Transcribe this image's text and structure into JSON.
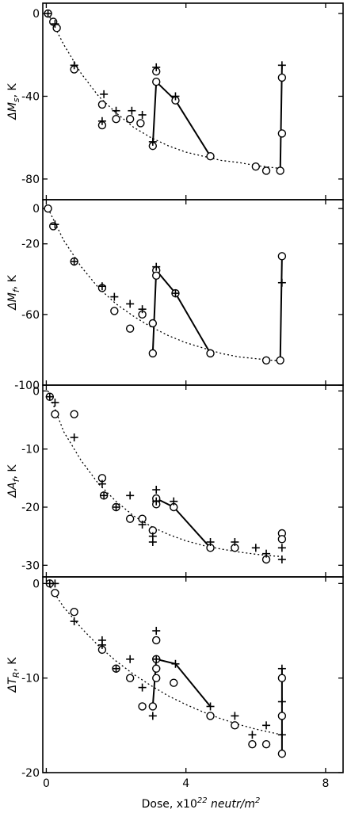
{
  "chart_data": [
    {
      "type": "scatter",
      "ylabel": "ΔM_s , K",
      "ylabel_main": "ΔM",
      "ylabel_sub": "s",
      "ylabel_unit": ", K",
      "ylim": [
        -90,
        5
      ],
      "yticks": [
        0,
        -40,
        -80
      ],
      "ytick_labels": [
        "0",
        "-40",
        "-80"
      ],
      "xlim": [
        -0.1,
        8.5
      ],
      "series": [
        {
          "marker": "circle",
          "points": [
            [
              0.05,
              0
            ],
            [
              0.2,
              -4
            ],
            [
              0.3,
              -7
            ],
            [
              0.8,
              -27
            ],
            [
              1.6,
              -44
            ],
            [
              1.6,
              -54
            ],
            [
              2.0,
              -51
            ],
            [
              2.4,
              -51
            ],
            [
              2.7,
              -53
            ],
            [
              3.05,
              -64
            ],
            [
              3.15,
              -28
            ],
            [
              3.15,
              -33
            ],
            [
              3.7,
              -42
            ],
            [
              4.7,
              -69
            ],
            [
              6.0,
              -74
            ],
            [
              6.3,
              -76
            ],
            [
              6.7,
              -76
            ],
            [
              6.75,
              -58
            ],
            [
              6.75,
              -31
            ]
          ]
        },
        {
          "marker": "cross",
          "points": [
            [
              0.05,
              0
            ],
            [
              0.25,
              -5
            ],
            [
              0.8,
              -25
            ],
            [
              1.65,
              -39
            ],
            [
              1.6,
              -52
            ],
            [
              2.0,
              -47
            ],
            [
              2.45,
              -47
            ],
            [
              2.75,
              -49
            ],
            [
              3.05,
              -62
            ],
            [
              3.15,
              -26
            ],
            [
              3.7,
              -40
            ],
            [
              6.75,
              -25
            ]
          ]
        }
      ],
      "solid_lines": [
        [
          [
            3.05,
            -64
          ],
          [
            3.15,
            -33
          ],
          [
            3.7,
            -42
          ],
          [
            4.7,
            -69
          ]
        ],
        [
          [
            6.7,
            -76
          ],
          [
            6.75,
            -25
          ]
        ]
      ],
      "fit_curve": {
        "style": "dotted",
        "points": [
          [
            0.05,
            0
          ],
          [
            0.5,
            -15
          ],
          [
            1.0,
            -29
          ],
          [
            1.5,
            -40
          ],
          [
            2.0,
            -48
          ],
          [
            2.5,
            -55
          ],
          [
            3.0,
            -60
          ],
          [
            3.5,
            -64
          ],
          [
            4.0,
            -67
          ],
          [
            4.5,
            -69
          ],
          [
            5.0,
            -71
          ],
          [
            5.5,
            -72
          ],
          [
            6.0,
            -73.5
          ],
          [
            6.5,
            -74.5
          ],
          [
            6.75,
            -75
          ]
        ]
      }
    },
    {
      "type": "scatter",
      "ylabel": "ΔM_f , K",
      "ylabel_main": "ΔM",
      "ylabel_sub": "f",
      "ylabel_unit": ", K",
      "ylim": [
        -100,
        5
      ],
      "yticks": [
        0,
        -20,
        -60,
        -100
      ],
      "ytick_labels": [
        "0",
        "-20",
        "-60",
        "-100"
      ],
      "xlim": [
        -0.1,
        8.5
      ],
      "series": [
        {
          "marker": "circle",
          "points": [
            [
              0.05,
              0
            ],
            [
              0.2,
              -10
            ],
            [
              0.8,
              -30
            ],
            [
              1.6,
              -45
            ],
            [
              1.95,
              -58
            ],
            [
              2.4,
              -68
            ],
            [
              2.75,
              -60
            ],
            [
              3.05,
              -65
            ],
            [
              3.05,
              -82
            ],
            [
              3.15,
              -35
            ],
            [
              3.15,
              -38
            ],
            [
              3.7,
              -48
            ],
            [
              4.7,
              -82
            ],
            [
              6.3,
              -86
            ],
            [
              6.7,
              -86
            ],
            [
              6.75,
              -27
            ]
          ]
        },
        {
          "marker": "cross",
          "points": [
            [
              0.25,
              -9
            ],
            [
              0.8,
              -30
            ],
            [
              1.6,
              -44
            ],
            [
              1.95,
              -50
            ],
            [
              2.4,
              -54
            ],
            [
              2.75,
              -57
            ],
            [
              3.15,
              -33
            ],
            [
              3.7,
              -48
            ],
            [
              6.75,
              -42
            ]
          ]
        }
      ],
      "solid_lines": [
        [
          [
            3.05,
            -82
          ],
          [
            3.15,
            -35
          ],
          [
            3.7,
            -48
          ],
          [
            4.7,
            -82
          ]
        ],
        [
          [
            6.7,
            -86
          ],
          [
            6.75,
            -27
          ]
        ]
      ],
      "fit_curve": {
        "style": "dotted",
        "points": [
          [
            0.05,
            0
          ],
          [
            0.5,
            -18
          ],
          [
            1.0,
            -33
          ],
          [
            1.5,
            -45
          ],
          [
            2.0,
            -54
          ],
          [
            2.5,
            -61
          ],
          [
            3.0,
            -67
          ],
          [
            3.5,
            -72
          ],
          [
            4.0,
            -76
          ],
          [
            4.5,
            -79
          ],
          [
            5.0,
            -82
          ],
          [
            5.5,
            -84
          ],
          [
            6.0,
            -85
          ],
          [
            6.5,
            -86
          ],
          [
            6.75,
            -86
          ]
        ]
      }
    },
    {
      "type": "scatter",
      "ylabel": "ΔA_f , K",
      "ylabel_main": "ΔA",
      "ylabel_sub": "f",
      "ylabel_unit": ", K",
      "ylim": [
        -32,
        1
      ],
      "yticks": [
        0,
        -10,
        -20,
        -30
      ],
      "ytick_labels": [
        "0",
        "-10",
        "-20",
        "-30"
      ],
      "xlim": [
        -0.1,
        8.5
      ],
      "series": [
        {
          "marker": "circle",
          "points": [
            [
              0.1,
              -1
            ],
            [
              0.25,
              -4
            ],
            [
              0.8,
              -4
            ],
            [
              1.6,
              -15
            ],
            [
              1.65,
              -18
            ],
            [
              2.0,
              -20
            ],
            [
              2.4,
              -22
            ],
            [
              2.75,
              -22
            ],
            [
              3.05,
              -24
            ],
            [
              3.15,
              -18.5
            ],
            [
              3.15,
              -19.5
            ],
            [
              3.65,
              -20
            ],
            [
              4.7,
              -27
            ],
            [
              5.4,
              -27
            ],
            [
              6.3,
              -29
            ],
            [
              6.75,
              -24.5
            ],
            [
              6.75,
              -25.5
            ]
          ]
        },
        {
          "marker": "cross",
          "points": [
            [
              0.1,
              -1
            ],
            [
              0.25,
              -2
            ],
            [
              0.8,
              -8
            ],
            [
              1.6,
              -16
            ],
            [
              1.65,
              -18
            ],
            [
              2.0,
              -20
            ],
            [
              2.4,
              -18
            ],
            [
              2.75,
              -23
            ],
            [
              3.05,
              -25
            ],
            [
              3.05,
              -26
            ],
            [
              3.15,
              -17
            ],
            [
              3.15,
              -19
            ],
            [
              3.65,
              -19
            ],
            [
              4.7,
              -26
            ],
            [
              5.4,
              -26
            ],
            [
              6.0,
              -27
            ],
            [
              6.3,
              -28
            ],
            [
              6.75,
              -27
            ],
            [
              6.75,
              -29
            ]
          ]
        }
      ],
      "solid_lines": [
        [
          [
            3.05,
            -19
          ],
          [
            3.15,
            -18.5
          ],
          [
            3.65,
            -20
          ],
          [
            4.7,
            -27
          ]
        ]
      ],
      "fit_curve": {
        "style": "dotted",
        "points": [
          [
            0.05,
            0
          ],
          [
            0.5,
            -7
          ],
          [
            1.0,
            -12
          ],
          [
            1.5,
            -16
          ],
          [
            2.0,
            -19
          ],
          [
            2.5,
            -21.5
          ],
          [
            3.0,
            -23.3
          ],
          [
            3.5,
            -24.7
          ],
          [
            4.0,
            -25.8
          ],
          [
            4.5,
            -26.6
          ],
          [
            5.0,
            -27.2
          ],
          [
            5.5,
            -27.7
          ],
          [
            6.0,
            -28.1
          ],
          [
            6.5,
            -28.4
          ],
          [
            6.75,
            -28.5
          ]
        ]
      }
    },
    {
      "type": "scatter",
      "ylabel": "ΔT_R , K",
      "ylabel_main": "ΔT",
      "ylabel_sub": "R",
      "ylabel_unit": ", K",
      "xlabel": "Dose, x10^22 neutr/m^2",
      "xlabel_main": "Dose, x10",
      "xlabel_exp": "22",
      "xlabel_unit": " neutr/m",
      "xlabel_unit_exp": "2",
      "ylim": [
        -20,
        0.7
      ],
      "yticks": [
        0,
        -10,
        -20
      ],
      "ytick_labels": [
        "0",
        "-10",
        "-20"
      ],
      "xlim": [
        -0.1,
        8.5
      ],
      "xticks": [
        0,
        4,
        8
      ],
      "xtick_labels": [
        "0",
        "4",
        "8"
      ],
      "series": [
        {
          "marker": "circle",
          "points": [
            [
              0.1,
              0
            ],
            [
              0.25,
              -1
            ],
            [
              0.8,
              -3
            ],
            [
              1.6,
              -7
            ],
            [
              2.0,
              -9
            ],
            [
              2.4,
              -10
            ],
            [
              2.75,
              -13
            ],
            [
              3.05,
              -13
            ],
            [
              3.15,
              -6
            ],
            [
              3.15,
              -8
            ],
            [
              3.15,
              -9
            ],
            [
              3.15,
              -10
            ],
            [
              3.65,
              -10.5
            ],
            [
              4.7,
              -14
            ],
            [
              5.4,
              -15
            ],
            [
              5.9,
              -17
            ],
            [
              6.3,
              -17
            ],
            [
              6.75,
              -10
            ],
            [
              6.75,
              -14
            ],
            [
              6.75,
              -18
            ]
          ]
        },
        {
          "marker": "cross",
          "points": [
            [
              0.1,
              0
            ],
            [
              0.25,
              0
            ],
            [
              0.8,
              -4
            ],
            [
              1.6,
              -6
            ],
            [
              1.6,
              -6.5
            ],
            [
              2.0,
              -9
            ],
            [
              2.4,
              -8
            ],
            [
              2.75,
              -11
            ],
            [
              3.05,
              -14
            ],
            [
              3.15,
              -5
            ],
            [
              3.15,
              -8
            ],
            [
              3.7,
              -8.5
            ],
            [
              4.7,
              -13
            ],
            [
              5.4,
              -14
            ],
            [
              5.9,
              -16
            ],
            [
              6.3,
              -15
            ],
            [
              6.75,
              -9
            ],
            [
              6.75,
              -12.5
            ],
            [
              6.75,
              -16
            ]
          ]
        }
      ],
      "solid_lines": [
        [
          [
            3.05,
            -13
          ],
          [
            3.15,
            -8
          ],
          [
            3.7,
            -8.5
          ],
          [
            4.7,
            -13
          ]
        ],
        [
          [
            6.75,
            -18
          ],
          [
            6.75,
            -9
          ]
        ]
      ],
      "fit_curve": {
        "style": "dotted",
        "points": [
          [
            0.05,
            0
          ],
          [
            0.5,
            -2.5
          ],
          [
            1.0,
            -4.7
          ],
          [
            1.5,
            -6.6
          ],
          [
            2.0,
            -8.2
          ],
          [
            2.5,
            -9.6
          ],
          [
            3.0,
            -10.8
          ],
          [
            3.5,
            -11.9
          ],
          [
            4.0,
            -12.8
          ],
          [
            4.5,
            -13.6
          ],
          [
            5.0,
            -14.3
          ],
          [
            5.5,
            -14.9
          ],
          [
            6.0,
            -15.4
          ],
          [
            6.5,
            -15.8
          ],
          [
            6.75,
            -16
          ]
        ]
      }
    }
  ]
}
